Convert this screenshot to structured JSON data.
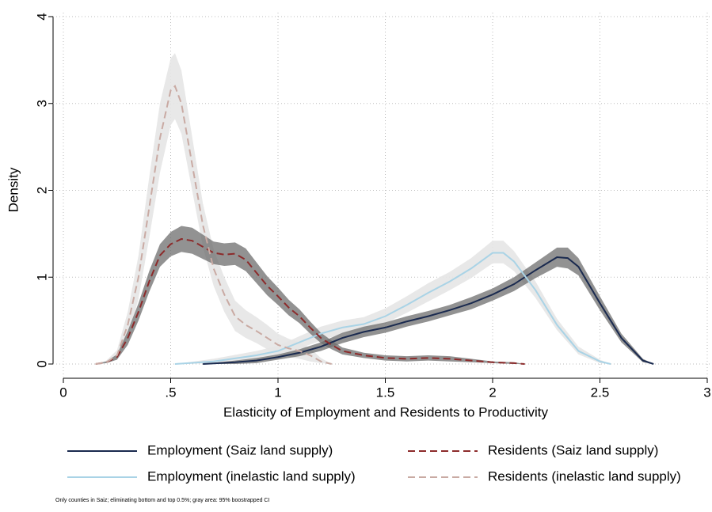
{
  "chart_data": {
    "type": "line",
    "x_label": "Elasticity of Employment and Residents to Productivity",
    "y_label": "Density",
    "note": "Only counties in Saiz; eliminating bottom and top 0.5%; gray area: 95% boostrapped CI",
    "xlim": [
      0,
      3
    ],
    "ylim": [
      0,
      4
    ],
    "xticks": [
      0,
      {
        "value": 0.5,
        "label": ".5"
      },
      1,
      1.5,
      2,
      2.5,
      3
    ],
    "yticks": [
      0,
      1,
      2,
      3,
      4
    ],
    "grid": true,
    "series": [
      {
        "name": "Employment (Saiz land supply)",
        "color": "#1a2a4f",
        "dashed": false,
        "band_color": "#6e6e6e",
        "x": [
          0.65,
          0.8,
          0.9,
          1.0,
          1.1,
          1.2,
          1.3,
          1.4,
          1.5,
          1.6,
          1.7,
          1.8,
          1.9,
          2.0,
          2.1,
          2.2,
          2.3,
          2.35,
          2.4,
          2.5,
          2.6,
          2.7,
          2.75
        ],
        "values": [
          0,
          0.02,
          0.04,
          0.08,
          0.13,
          0.2,
          0.3,
          0.37,
          0.42,
          0.49,
          0.55,
          0.62,
          0.7,
          0.8,
          0.92,
          1.08,
          1.23,
          1.22,
          1.12,
          0.7,
          0.3,
          0.04,
          0
        ],
        "lower": [
          0,
          0,
          0.01,
          0.05,
          0.09,
          0.15,
          0.24,
          0.31,
          0.36,
          0.43,
          0.49,
          0.56,
          0.63,
          0.73,
          0.84,
          0.99,
          1.12,
          1.1,
          1.02,
          0.62,
          0.25,
          0.02,
          0
        ],
        "upper": [
          0,
          0.04,
          0.07,
          0.11,
          0.17,
          0.25,
          0.36,
          0.43,
          0.48,
          0.55,
          0.61,
          0.68,
          0.77,
          0.87,
          1.0,
          1.17,
          1.34,
          1.34,
          1.22,
          0.78,
          0.35,
          0.06,
          0
        ]
      },
      {
        "name": "Employment (inelastic land supply)",
        "color": "#a9d3e6",
        "dashed": false,
        "band_color": "#e6e6e6",
        "x": [
          0.52,
          0.7,
          0.9,
          1.0,
          1.1,
          1.2,
          1.3,
          1.4,
          1.5,
          1.6,
          1.7,
          1.8,
          1.9,
          2.0,
          2.05,
          2.1,
          2.2,
          2.3,
          2.4,
          2.5,
          2.55
        ],
        "values": [
          0,
          0.03,
          0.1,
          0.15,
          0.25,
          0.35,
          0.42,
          0.46,
          0.55,
          0.68,
          0.82,
          0.95,
          1.1,
          1.28,
          1.28,
          1.18,
          0.85,
          0.45,
          0.15,
          0.03,
          0
        ],
        "lower": [
          0,
          0.01,
          0.06,
          0.1,
          0.18,
          0.27,
          0.35,
          0.39,
          0.47,
          0.59,
          0.72,
          0.85,
          0.99,
          1.16,
          1.16,
          1.07,
          0.76,
          0.39,
          0.11,
          0.01,
          0
        ],
        "upper": [
          0,
          0.06,
          0.15,
          0.21,
          0.32,
          0.43,
          0.5,
          0.54,
          0.64,
          0.78,
          0.93,
          1.06,
          1.22,
          1.42,
          1.42,
          1.3,
          0.95,
          0.52,
          0.2,
          0.05,
          0
        ]
      },
      {
        "name": "Residents (Saiz land supply)",
        "color": "#8c2b2b",
        "dashed": true,
        "band_color": "#6e6e6e",
        "x": [
          0.15,
          0.2,
          0.25,
          0.3,
          0.35,
          0.4,
          0.45,
          0.5,
          0.55,
          0.6,
          0.65,
          0.7,
          0.75,
          0.8,
          0.85,
          0.9,
          0.95,
          1.0,
          1.05,
          1.1,
          1.15,
          1.2,
          1.25,
          1.3,
          1.4,
          1.5,
          1.6,
          1.7,
          1.8,
          1.9,
          2.0,
          2.1,
          2.15
        ],
        "values": [
          0,
          0.02,
          0.08,
          0.3,
          0.6,
          0.95,
          1.25,
          1.38,
          1.44,
          1.42,
          1.35,
          1.28,
          1.26,
          1.27,
          1.2,
          1.05,
          0.9,
          0.78,
          0.65,
          0.55,
          0.42,
          0.3,
          0.22,
          0.15,
          0.1,
          0.07,
          0.06,
          0.07,
          0.06,
          0.04,
          0.02,
          0.01,
          0
        ],
        "lower": [
          0,
          0.01,
          0.05,
          0.22,
          0.5,
          0.83,
          1.12,
          1.24,
          1.29,
          1.27,
          1.21,
          1.15,
          1.13,
          1.14,
          1.07,
          0.93,
          0.79,
          0.68,
          0.56,
          0.47,
          0.35,
          0.24,
          0.17,
          0.11,
          0.07,
          0.04,
          0.03,
          0.04,
          0.03,
          0.02,
          0.01,
          0,
          0
        ],
        "upper": [
          0,
          0.03,
          0.11,
          0.38,
          0.7,
          1.07,
          1.38,
          1.52,
          1.59,
          1.57,
          1.49,
          1.41,
          1.39,
          1.4,
          1.33,
          1.17,
          1.01,
          0.88,
          0.74,
          0.63,
          0.49,
          0.36,
          0.27,
          0.19,
          0.13,
          0.1,
          0.09,
          0.1,
          0.09,
          0.06,
          0.03,
          0.02,
          0
        ]
      },
      {
        "name": "Residents (inelastic land supply)",
        "color": "#c9aaa3",
        "dashed": true,
        "band_color": "#e6e6e6",
        "x": [
          0.15,
          0.2,
          0.25,
          0.3,
          0.35,
          0.4,
          0.45,
          0.5,
          0.52,
          0.55,
          0.6,
          0.65,
          0.7,
          0.75,
          0.8,
          0.85,
          0.9,
          0.95,
          1.0,
          1.05,
          1.1,
          1.15,
          1.2,
          1.25
        ],
        "values": [
          0,
          0.02,
          0.1,
          0.45,
          1.0,
          1.8,
          2.6,
          3.15,
          3.2,
          3.0,
          2.3,
          1.6,
          1.1,
          0.8,
          0.55,
          0.45,
          0.38,
          0.3,
          0.22,
          0.18,
          0.15,
          0.1,
          0.03,
          0
        ],
        "lower": [
          0,
          0.01,
          0.05,
          0.3,
          0.75,
          1.45,
          2.2,
          2.75,
          2.82,
          2.65,
          2.0,
          1.35,
          0.9,
          0.6,
          0.38,
          0.3,
          0.24,
          0.17,
          0.11,
          0.08,
          0.06,
          0.03,
          0.01,
          0
        ],
        "upper": [
          0,
          0.04,
          0.16,
          0.6,
          1.25,
          2.15,
          3.0,
          3.52,
          3.58,
          3.38,
          2.62,
          1.85,
          1.32,
          1.0,
          0.73,
          0.62,
          0.54,
          0.45,
          0.35,
          0.29,
          0.25,
          0.18,
          0.07,
          0
        ]
      }
    ]
  }
}
